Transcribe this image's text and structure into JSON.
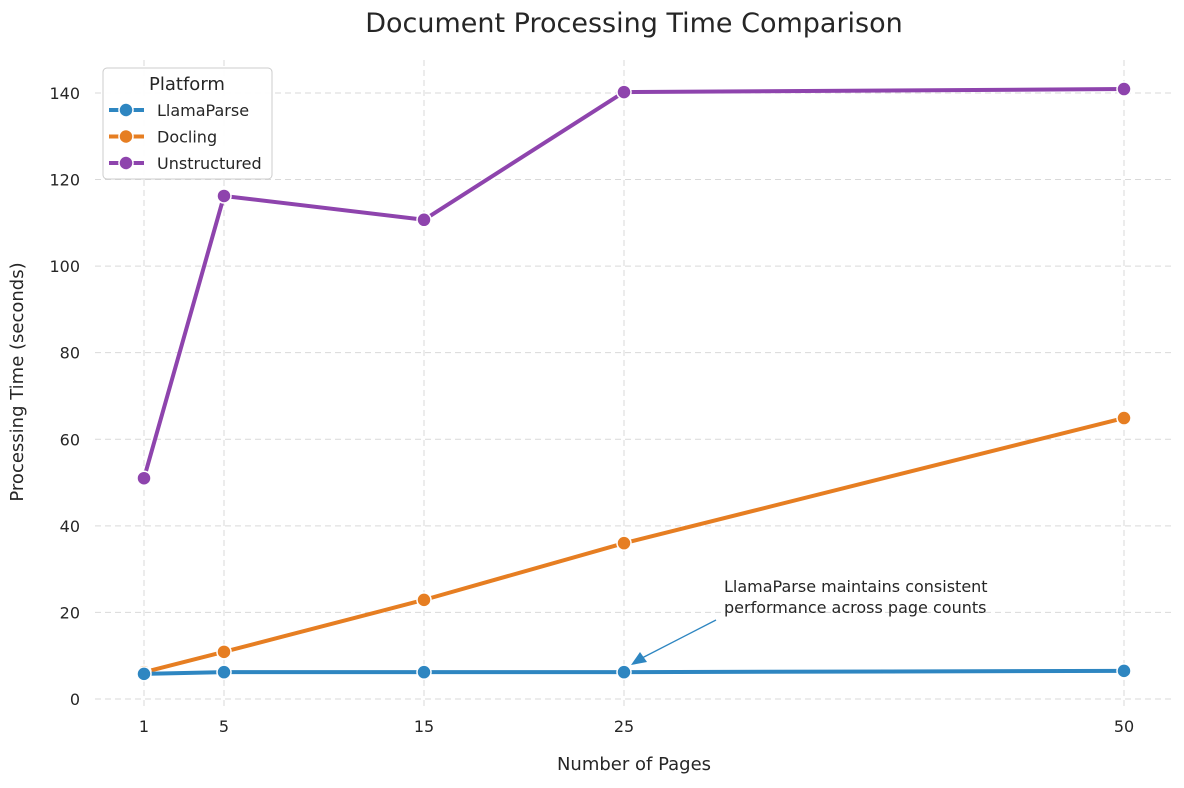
{
  "chart_data": {
    "type": "line",
    "title": "Document Processing Time Comparison",
    "xlabel": "Number of Pages",
    "ylabel": "Processing Time (seconds)",
    "x": [
      1,
      5,
      15,
      25,
      50
    ],
    "xticks": [
      "1",
      "5",
      "15",
      "25",
      "50"
    ],
    "yticks": [
      0,
      20,
      40,
      60,
      80,
      100,
      120,
      140
    ],
    "ylim": [
      -0.5,
      147
    ],
    "grid": true,
    "legend": {
      "title": "Platform",
      "position": "upper left"
    },
    "series": [
      {
        "name": "LlamaParse",
        "color": "#2e86c1",
        "values": [
          5.8,
          6.2,
          6.2,
          6.2,
          6.5
        ]
      },
      {
        "name": "Docling",
        "color": "#e67e22",
        "values": [
          6.2,
          10.9,
          22.9,
          36.0,
          64.9
        ]
      },
      {
        "name": "Unstructured",
        "color": "#8e44ad",
        "values": [
          51.0,
          116.2,
          110.7,
          140.2,
          140.9
        ]
      }
    ],
    "annotation": {
      "lines": [
        "LlamaParse maintains consistent",
        "performance across page counts"
      ],
      "target_x": 25,
      "color": "#2e86c1"
    }
  }
}
